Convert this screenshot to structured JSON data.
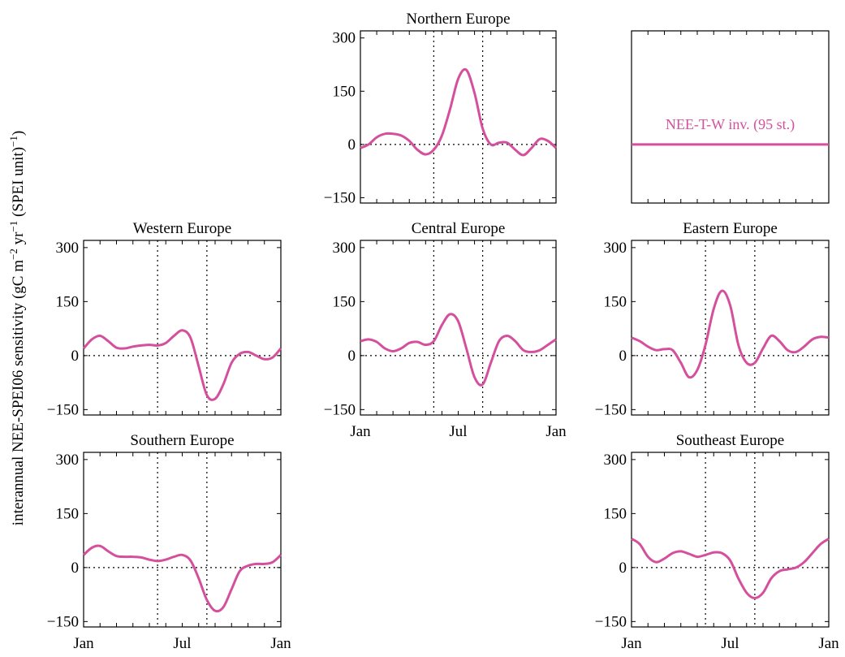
{
  "figure": {
    "ylabel": "interannual NEE-SPEI06 sensitivity (gC m",
    "ylabel_sup1": "−2",
    "ylabel_mid": " yr",
    "ylabel_sup2": "−1",
    "ylabel_end": " (SPEI unit)",
    "ylabel_sup3": "−1",
    "ylabel_close": ")",
    "line_color": "#d4509c",
    "legend_label": "NEE-T-W inv. (95 st.)"
  },
  "chart_data": [
    {
      "type": "line",
      "title": "Northern Europe",
      "ylim": [
        -165,
        320
      ],
      "yticks": [
        "300",
        "150",
        "0",
        "−150"
      ],
      "xticks": [],
      "vlines": [
        4.5,
        7.5
      ],
      "series": [
        {
          "x": [
            0,
            0.5,
            1,
            1.5,
            2,
            2.5,
            3,
            3.5,
            4,
            4.5,
            5,
            5.5,
            6,
            6.5,
            7,
            7.5,
            8,
            8.5,
            9,
            9.5,
            10,
            10.5,
            11,
            11.5,
            12
          ],
          "values": [
            -10,
            0,
            20,
            30,
            30,
            25,
            10,
            -15,
            -28,
            -15,
            25,
            100,
            185,
            210,
            145,
            45,
            0,
            5,
            5,
            -15,
            -30,
            -10,
            15,
            10,
            -10
          ]
        }
      ]
    },
    {
      "type": "line",
      "title": "",
      "ylim": [
        -165,
        320
      ],
      "yticks": [],
      "xticks": [],
      "vlines": [],
      "legend": "inline",
      "series": [
        {
          "x": [
            0,
            12
          ],
          "values": [
            0,
            0
          ]
        }
      ]
    },
    {
      "type": "line",
      "title": "Western Europe",
      "ylim": [
        -165,
        320
      ],
      "yticks": [
        "300",
        "150",
        "0",
        "−150"
      ],
      "xticks": [],
      "vlines": [
        4.5,
        7.5
      ],
      "series": [
        {
          "x": [
            0,
            0.5,
            1,
            1.5,
            2,
            2.5,
            3,
            3.5,
            4,
            4.5,
            5,
            5.5,
            6,
            6.5,
            7,
            7.5,
            8,
            8.5,
            9,
            9.5,
            10,
            10.5,
            11,
            11.5,
            12
          ],
          "values": [
            20,
            45,
            55,
            40,
            22,
            20,
            25,
            28,
            30,
            28,
            35,
            55,
            70,
            50,
            -30,
            -110,
            -120,
            -80,
            -20,
            5,
            10,
            0,
            -10,
            -5,
            20
          ]
        }
      ]
    },
    {
      "type": "line",
      "title": "Central Europe",
      "ylim": [
        -165,
        320
      ],
      "yticks": [
        "300",
        "150",
        "0",
        "−150"
      ],
      "xticks": [
        "Jan",
        "Jul",
        "Jan"
      ],
      "vlines": [
        4.5,
        7.5
      ],
      "series": [
        {
          "x": [
            0,
            0.5,
            1,
            1.5,
            2,
            2.5,
            3,
            3.5,
            4,
            4.5,
            5,
            5.5,
            6,
            6.5,
            7,
            7.5,
            8,
            8.5,
            9,
            9.5,
            10,
            10.5,
            11,
            11.5,
            12
          ],
          "values": [
            40,
            45,
            38,
            20,
            12,
            20,
            35,
            38,
            30,
            40,
            85,
            115,
            95,
            20,
            -60,
            -80,
            -20,
            40,
            55,
            40,
            15,
            10,
            15,
            30,
            45
          ]
        }
      ]
    },
    {
      "type": "line",
      "title": "Eastern Europe",
      "ylim": [
        -165,
        320
      ],
      "yticks": [
        "300",
        "150",
        "0",
        "−150"
      ],
      "xticks": [],
      "vlines": [
        4.5,
        7.5
      ],
      "series": [
        {
          "x": [
            0,
            0.5,
            1,
            1.5,
            2,
            2.5,
            3,
            3.5,
            4,
            4.5,
            5,
            5.5,
            6,
            6.5,
            7,
            7.5,
            8,
            8.5,
            9,
            9.5,
            10,
            10.5,
            11,
            11.5,
            12
          ],
          "values": [
            50,
            40,
            25,
            15,
            18,
            15,
            -20,
            -60,
            -40,
            30,
            130,
            180,
            140,
            30,
            -20,
            -20,
            20,
            55,
            40,
            15,
            10,
            25,
            45,
            52,
            50
          ]
        }
      ]
    },
    {
      "type": "line",
      "title": "Southern Europe",
      "ylim": [
        -165,
        320
      ],
      "yticks": [
        "300",
        "150",
        "0",
        "−150"
      ],
      "xticks": [
        "Jan",
        "Jul",
        "Jan"
      ],
      "vlines": [
        4.5,
        7.5
      ],
      "series": [
        {
          "x": [
            0,
            0.5,
            1,
            1.5,
            2,
            2.5,
            3,
            3.5,
            4,
            4.5,
            5,
            5.5,
            6,
            6.5,
            7,
            7.5,
            8,
            8.5,
            9,
            9.5,
            10,
            10.5,
            11,
            11.5,
            12
          ],
          "values": [
            35,
            55,
            60,
            45,
            32,
            30,
            30,
            28,
            22,
            18,
            22,
            30,
            35,
            20,
            -30,
            -90,
            -120,
            -110,
            -60,
            -10,
            5,
            10,
            10,
            15,
            35
          ]
        }
      ]
    },
    {
      "type": "line",
      "title": "Southeast Europe",
      "ylim": [
        -165,
        320
      ],
      "yticks": [
        "300",
        "150",
        "0",
        "−150"
      ],
      "xticks": [
        "Jan",
        "Jul",
        "Jan"
      ],
      "vlines": [
        4.5,
        7.5
      ],
      "series": [
        {
          "x": [
            0,
            0.5,
            1,
            1.5,
            2,
            2.5,
            3,
            3.5,
            4,
            4.5,
            5,
            5.5,
            6,
            6.5,
            7,
            7.5,
            8,
            8.5,
            9,
            9.5,
            10,
            10.5,
            11,
            11.5,
            12
          ],
          "values": [
            80,
            65,
            30,
            15,
            25,
            40,
            45,
            38,
            30,
            35,
            42,
            40,
            20,
            -30,
            -70,
            -85,
            -70,
            -30,
            -10,
            -5,
            0,
            15,
            40,
            65,
            80
          ]
        }
      ]
    }
  ]
}
